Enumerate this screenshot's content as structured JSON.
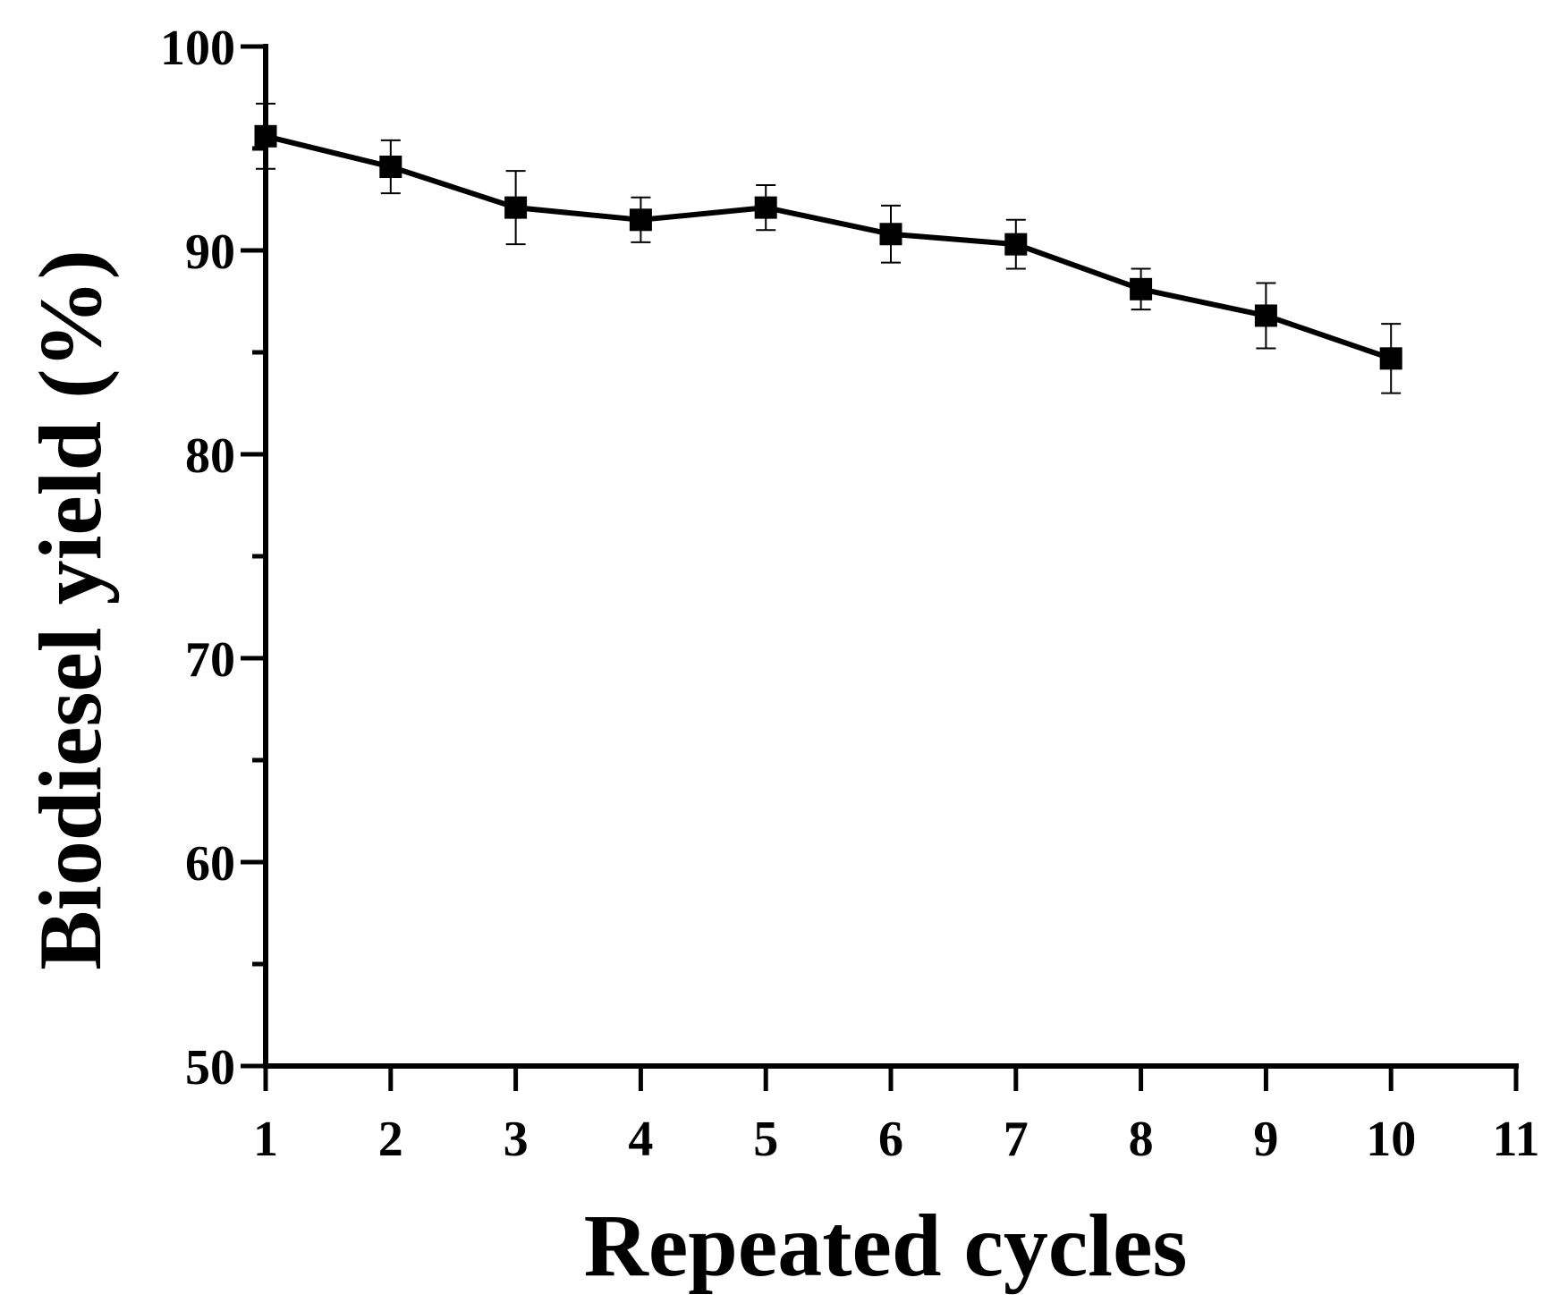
{
  "chart_data": {
    "type": "line",
    "xlabel": "Repeated cycles",
    "ylabel": "Biodiesel yield (%)",
    "xlim": [
      1,
      11
    ],
    "ylim": [
      50,
      100
    ],
    "x_ticks": [
      1,
      2,
      3,
      4,
      5,
      6,
      7,
      8,
      9,
      10,
      11
    ],
    "y_ticks": [
      50,
      60,
      70,
      80,
      90,
      100
    ],
    "y_minor_ticks": [
      55,
      65,
      75,
      85,
      95
    ],
    "grid": false,
    "marker": "square",
    "color": "#000000",
    "series": [
      {
        "x": [
          1,
          2,
          3,
          4,
          5,
          6,
          7,
          8,
          9,
          10
        ],
        "y": [
          95.6,
          94.1,
          92.1,
          91.5,
          92.1,
          90.8,
          90.3,
          88.1,
          86.8,
          84.7
        ],
        "error": [
          1.6,
          1.3,
          1.8,
          1.1,
          1.1,
          1.4,
          1.2,
          1.0,
          1.6,
          1.7
        ]
      }
    ]
  }
}
